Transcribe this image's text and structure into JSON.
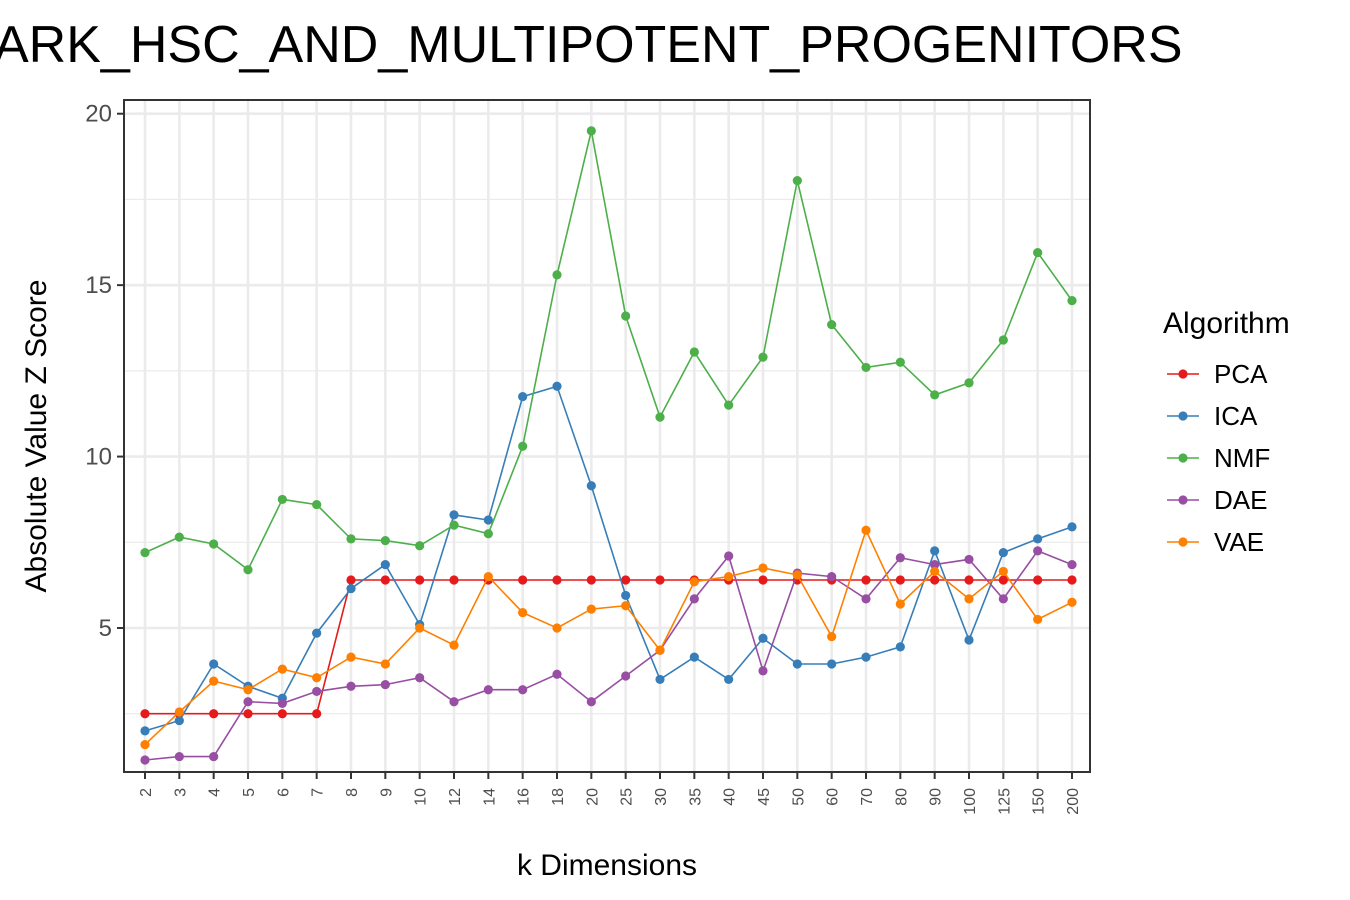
{
  "chart_data": {
    "type": "line",
    "title": "ARK_HSC_AND_MULTIPOTENT_PROGENITORS",
    "xlabel": "k Dimensions",
    "ylabel": "Absolute Value Z Score",
    "ylim": [
      0.8,
      20.4
    ],
    "yticks": [
      5,
      10,
      15,
      20
    ],
    "grid": true,
    "legend_title": "Algorithm",
    "legend_position": "right",
    "categories": [
      "2",
      "3",
      "4",
      "5",
      "6",
      "7",
      "8",
      "9",
      "10",
      "12",
      "14",
      "16",
      "18",
      "20",
      "25",
      "30",
      "35",
      "40",
      "45",
      "50",
      "60",
      "70",
      "80",
      "90",
      "100",
      "125",
      "150",
      "200"
    ],
    "series": [
      {
        "name": "PCA",
        "color": "#e41a1c",
        "values": [
          2.5,
          2.5,
          2.5,
          2.5,
          2.5,
          2.5,
          6.4,
          6.4,
          6.4,
          6.4,
          6.4,
          6.4,
          6.4,
          6.4,
          6.4,
          6.4,
          6.4,
          6.4,
          6.4,
          6.4,
          6.4,
          6.4,
          6.4,
          6.4,
          6.4,
          6.4,
          6.4,
          6.4
        ]
      },
      {
        "name": "ICA",
        "color": "#377eb8",
        "values": [
          2.0,
          2.3,
          3.95,
          3.3,
          2.95,
          4.85,
          6.15,
          6.85,
          5.1,
          8.3,
          8.15,
          11.75,
          12.05,
          9.15,
          5.95,
          3.5,
          4.15,
          3.5,
          4.7,
          3.95,
          3.95,
          4.15,
          4.45,
          7.25,
          4.65,
          7.2,
          7.6,
          7.95
        ]
      },
      {
        "name": "NMF",
        "color": "#4daf4a",
        "values": [
          7.2,
          7.65,
          7.45,
          6.7,
          8.75,
          8.6,
          7.6,
          7.55,
          7.4,
          8.0,
          7.75,
          10.3,
          15.3,
          19.5,
          14.1,
          11.15,
          13.05,
          11.5,
          12.9,
          18.05,
          13.85,
          12.6,
          12.75,
          11.8,
          12.15,
          13.4,
          15.95,
          14.55
        ]
      },
      {
        "name": "DAE",
        "color": "#984ea3",
        "values": [
          1.15,
          1.25,
          1.25,
          2.85,
          2.8,
          3.15,
          3.3,
          3.35,
          3.55,
          2.85,
          3.2,
          3.2,
          3.65,
          2.85,
          3.6,
          4.35,
          5.85,
          7.1,
          3.75,
          6.6,
          6.5,
          5.85,
          7.05,
          6.85,
          7.0,
          5.85,
          7.25,
          6.85
        ]
      },
      {
        "name": "VAE",
        "color": "#ff7f00",
        "values": [
          1.6,
          2.55,
          3.45,
          3.2,
          3.8,
          3.55,
          4.15,
          3.95,
          5.0,
          4.5,
          6.5,
          5.45,
          5.0,
          5.55,
          5.65,
          4.35,
          6.35,
          6.5,
          6.75,
          6.55,
          4.75,
          7.85,
          5.7,
          6.65,
          5.85,
          6.65,
          5.25,
          5.75
        ]
      }
    ]
  }
}
